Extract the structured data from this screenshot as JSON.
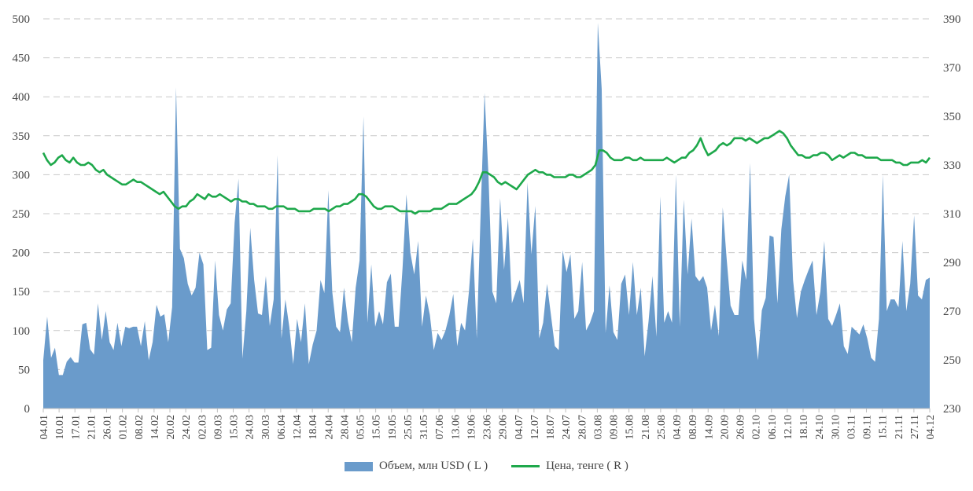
{
  "chart_data": {
    "type": "area+line",
    "y_left": {
      "min": 0,
      "max": 500,
      "ticks": [
        0,
        50,
        100,
        150,
        200,
        250,
        300,
        350,
        400,
        450,
        500
      ]
    },
    "y_right": {
      "min": 230,
      "max": 390,
      "ticks": [
        230,
        250,
        270,
        290,
        310,
        330,
        350,
        370,
        390
      ]
    },
    "x_tick_labels": [
      "04.01",
      "10.01",
      "17.01",
      "21.01",
      "26.01",
      "01.02",
      "08.02",
      "14.02",
      "20.02",
      "24.02",
      "02.03",
      "09.03",
      "15.03",
      "24.03",
      "30.03",
      "06.04",
      "12.04",
      "18.04",
      "24.04",
      "28.04",
      "05.05",
      "15.05",
      "19.05",
      "25.05",
      "31.05",
      "07.06",
      "13.06",
      "19.06",
      "23.06",
      "29.06",
      "04.07",
      "12.07",
      "18.07",
      "24.07",
      "28.07",
      "03.08",
      "09.08",
      "15.08",
      "21.08",
      "25.08",
      "04.09",
      "08.09",
      "14.09",
      "20.09",
      "26.09",
      "02.10",
      "06.10",
      "12.10",
      "18.10",
      "24.10",
      "30.10",
      "03.11",
      "09.11",
      "15.11",
      "21.11",
      "27.11",
      "04.12"
    ],
    "grid": true,
    "series": [
      {
        "name": "Объем, млн USD ( L )",
        "type": "area",
        "axis": "left",
        "color": "#6a9bcb",
        "values": [
          62,
          118,
          65,
          78,
          43,
          43,
          60,
          66,
          59,
          59,
          108,
          110,
          76,
          69,
          135,
          88,
          125,
          85,
          75,
          110,
          80,
          105,
          103,
          105,
          105,
          80,
          112,
          62,
          85,
          133,
          118,
          121,
          85,
          130,
          412,
          205,
          193,
          160,
          145,
          155,
          200,
          185,
          75,
          78,
          190,
          120,
          100,
          127,
          135,
          238,
          295,
          64,
          125,
          232,
          165,
          122,
          120,
          170,
          106,
          140,
          325,
          90,
          140,
          105,
          57,
          115,
          85,
          135,
          57,
          82,
          100,
          165,
          148,
          280,
          150,
          105,
          98,
          155,
          112,
          85,
          155,
          190,
          375,
          110,
          185,
          105,
          125,
          108,
          162,
          173,
          105,
          105,
          180,
          275,
          200,
          172,
          215,
          105,
          145,
          120,
          75,
          97,
          88,
          100,
          120,
          147,
          80,
          110,
          100,
          150,
          218,
          90,
          250,
          405,
          300,
          150,
          135,
          270,
          178,
          245,
          135,
          150,
          165,
          135,
          290,
          198,
          260,
          90,
          110,
          160,
          120,
          80,
          75,
          203,
          175,
          198,
          115,
          125,
          188,
          100,
          110,
          125,
          495,
          410,
          97,
          158,
          98,
          88,
          160,
          172,
          120,
          188,
          120,
          155,
          67,
          112,
          170,
          92,
          272,
          110,
          125,
          110,
          300,
          105,
          268,
          172,
          244,
          170,
          163,
          170,
          155,
          100,
          133,
          93,
          258,
          192,
          132,
          120,
          120,
          190,
          165,
          315,
          115,
          62,
          126,
          142,
          222,
          220,
          135,
          230,
          272,
          300,
          165,
          116,
          150,
          165,
          178,
          190,
          120,
          150,
          215,
          115,
          106,
          120,
          135,
          80,
          70,
          105,
          100,
          95,
          108,
          90,
          65,
          60,
          115,
          300,
          125,
          140,
          140,
          130,
          215,
          125,
          160,
          248,
          145,
          140,
          165,
          168
        ]
      },
      {
        "name": "Цена, тенге ( R )",
        "type": "line",
        "axis": "right",
        "color": "#1ea84b",
        "values": [
          335,
          332,
          330,
          331,
          333,
          334,
          332,
          331,
          333,
          331,
          330,
          330,
          331,
          330,
          328,
          327,
          328,
          326,
          325,
          324,
          323,
          322,
          322,
          323,
          324,
          323,
          323,
          322,
          321,
          320,
          319,
          318,
          319,
          317,
          315,
          313,
          312,
          313,
          313,
          315,
          316,
          318,
          317,
          316,
          318,
          317,
          317,
          318,
          317,
          316,
          315,
          316,
          316,
          315,
          315,
          314,
          314,
          313,
          313,
          313,
          312,
          312,
          313,
          313,
          313,
          312,
          312,
          312,
          311,
          311,
          311,
          311,
          312,
          312,
          312,
          312,
          311,
          312,
          313,
          313,
          314,
          314,
          315,
          316,
          318,
          318,
          317,
          315,
          313,
          312,
          312,
          313,
          313,
          313,
          312,
          311,
          311,
          311,
          311,
          310,
          311,
          311,
          311,
          311,
          312,
          312,
          312,
          313,
          314,
          314,
          314,
          315,
          316,
          317,
          318,
          320,
          323,
          327,
          327,
          326,
          325,
          323,
          322,
          323,
          322,
          321,
          320,
          322,
          324,
          326,
          327,
          328,
          327,
          327,
          326,
          326,
          325,
          325,
          325,
          325,
          326,
          326,
          325,
          325,
          326,
          327,
          328,
          330,
          336,
          336,
          335,
          333,
          332,
          332,
          332,
          333,
          333,
          332,
          332,
          333,
          332,
          332,
          332,
          332,
          332,
          332,
          333,
          332,
          331,
          332,
          333,
          333,
          335,
          336,
          338,
          341,
          337,
          334,
          335,
          336,
          338,
          339,
          338,
          339,
          341,
          341,
          341,
          340,
          341,
          340,
          339,
          340,
          341,
          341,
          342,
          343,
          344,
          343,
          341,
          338,
          336,
          334,
          334,
          333,
          333,
          334,
          334,
          335,
          335,
          334,
          332,
          333,
          334,
          333,
          334,
          335,
          335,
          334,
          334,
          333,
          333,
          333,
          333,
          332,
          332,
          332,
          332,
          331,
          331,
          330,
          330,
          331,
          331,
          331,
          332,
          331,
          333
        ]
      }
    ],
    "legend_position": "bottom"
  }
}
